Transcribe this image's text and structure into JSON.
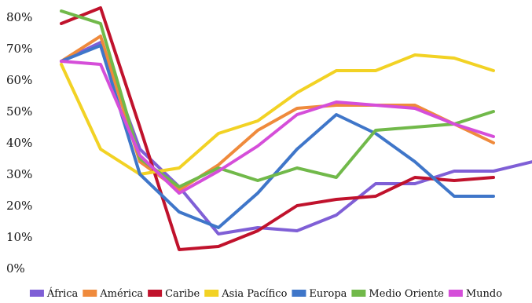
{
  "chart_data": {
    "type": "line",
    "title": "",
    "xlabel": "",
    "ylabel": "",
    "ylim": [
      0,
      80
    ],
    "y_ticks": [
      {
        "value": 80,
        "label": "80%"
      },
      {
        "value": 70,
        "label": "70%"
      },
      {
        "value": 60,
        "label": "60%"
      },
      {
        "value": 50,
        "label": "50%"
      },
      {
        "value": 40,
        "label": "40%"
      },
      {
        "value": 30,
        "label": "30%"
      },
      {
        "value": 20,
        "label": "20%"
      },
      {
        "value": 10,
        "label": "10%"
      },
      {
        "value": 0,
        "label": "0%"
      }
    ],
    "x_count": 17,
    "grid": false,
    "legend_position": "bottom",
    "series": [
      {
        "name": "África",
        "color": "#7f5fd6",
        "values": [
          66,
          72,
          38,
          26,
          11,
          13,
          12,
          17,
          27,
          27,
          31,
          31,
          34
        ]
      },
      {
        "name": "América",
        "color": "#ef8a3c",
        "values": [
          66,
          74,
          34,
          25,
          33,
          44,
          51,
          52,
          52,
          52,
          46,
          40
        ]
      },
      {
        "name": "Caribe",
        "color": "#c0122c",
        "values": [
          78,
          83,
          45,
          6,
          7,
          12,
          20,
          22,
          23,
          29,
          28,
          29
        ]
      },
      {
        "name": "Asia Pacífico",
        "color": "#f2d224",
        "values": [
          65,
          38,
          30,
          32,
          43,
          47,
          56,
          63,
          63,
          68,
          67,
          63
        ]
      },
      {
        "name": "Europa",
        "color": "#3f76c9",
        "values": [
          66,
          71,
          30,
          18,
          13,
          24,
          38,
          49,
          43,
          34,
          23,
          23
        ]
      },
      {
        "name": "Medio Oriente",
        "color": "#71b94a",
        "values": [
          82,
          78,
          35,
          26,
          32,
          28,
          32,
          29,
          44,
          45,
          46,
          50
        ]
      },
      {
        "name": "Mundo",
        "color": "#d54ed9",
        "values": [
          66,
          65,
          36,
          24,
          31,
          39,
          49,
          53,
          52,
          51,
          46,
          42
        ]
      }
    ]
  }
}
